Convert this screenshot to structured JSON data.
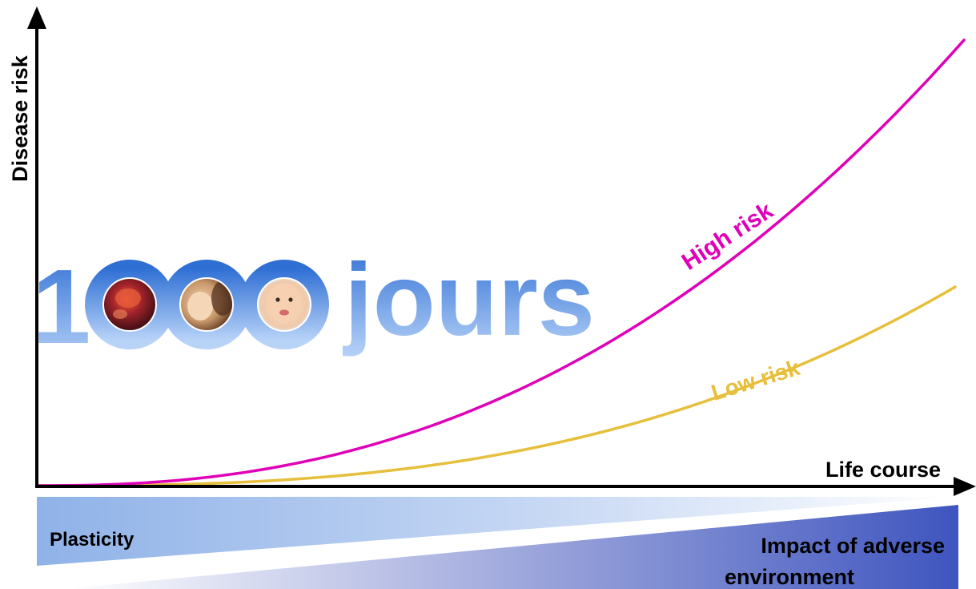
{
  "axes": {
    "y_label": "Disease risk",
    "x_label": "Life course"
  },
  "curves": {
    "high": {
      "label": "High risk",
      "color": "#e000b8"
    },
    "low": {
      "label": "Low risk",
      "color": "#e6bf3c"
    }
  },
  "banner": {
    "number": "1000",
    "word": "jours",
    "color_top": "#2f6fd4",
    "color_bottom": "#b8d3f8",
    "photos": [
      "fetus-photo",
      "breastfeeding-photo",
      "baby-photo"
    ]
  },
  "wedges": {
    "plasticity": "Plasticity",
    "adverse_line1": "Impact of adverse",
    "adverse_line2": "environment"
  },
  "colors": {
    "axis": "#000000",
    "wedge_light": "#8ab0e6",
    "wedge_dark": "#3f58c0"
  }
}
